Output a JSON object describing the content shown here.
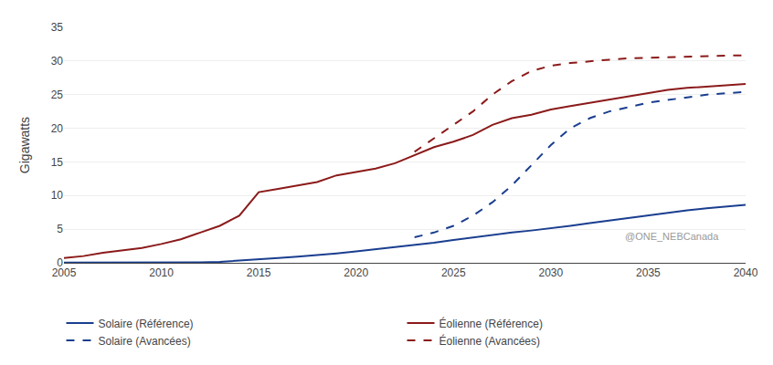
{
  "chart_data": {
    "type": "line",
    "ylabel": "Gigawatts",
    "annotations": [
      "@ONE_NEBCanada"
    ],
    "xlim": [
      2005,
      2040
    ],
    "ylim": [
      0,
      35
    ],
    "xticks": [
      2005,
      2010,
      2015,
      2020,
      2025,
      2030,
      2035,
      2040
    ],
    "yticks": [
      0,
      5,
      10,
      15,
      20,
      25,
      30,
      35
    ],
    "grid": "y",
    "legend": "bottom",
    "series": [
      {
        "name": "Solaire (Référence)",
        "color": "#1A3E8F",
        "line_style": "solid",
        "x": [
          2005,
          2006,
          2007,
          2008,
          2009,
          2010,
          2011,
          2012,
          2013,
          2014,
          2015,
          2016,
          2017,
          2018,
          2019,
          2020,
          2021,
          2022,
          2023,
          2024,
          2025,
          2026,
          2027,
          2028,
          2029,
          2030,
          2031,
          2032,
          2033,
          2034,
          2035,
          2036,
          2037,
          2038,
          2039,
          2040
        ],
        "values": [
          0.02,
          0.02,
          0.02,
          0.03,
          0.03,
          0.04,
          0.05,
          0.08,
          0.15,
          0.3,
          0.5,
          0.7,
          0.9,
          1.1,
          1.4,
          1.7,
          2.0,
          2.3,
          2.6,
          3.0,
          3.4,
          3.8,
          4.2,
          4.5,
          4.8,
          5.1,
          5.5,
          5.9,
          6.3,
          6.7,
          7.1,
          7.5,
          7.8,
          8.1,
          8.4,
          8.6
        ]
      },
      {
        "name": "Éolienne (Référence)",
        "color": "#8B1A1A",
        "line_style": "solid",
        "x": [
          2005,
          2006,
          2007,
          2008,
          2009,
          2010,
          2011,
          2012,
          2013,
          2014,
          2015,
          2016,
          2017,
          2018,
          2019,
          2020,
          2021,
          2022,
          2023,
          2024,
          2025,
          2026,
          2027,
          2028,
          2029,
          2030,
          2031,
          2032,
          2033,
          2034,
          2035,
          2036,
          2037,
          2038,
          2039,
          2040
        ],
        "values": [
          0.7,
          1.0,
          1.5,
          1.8,
          2.2,
          2.8,
          3.5,
          4.5,
          5.5,
          7.0,
          10.5,
          11.0,
          11.5,
          12.0,
          13.0,
          13.5,
          14.0,
          14.8,
          16.0,
          17.2,
          18.0,
          19.0,
          20.5,
          21.5,
          22.0,
          22.8,
          23.3,
          23.8,
          24.3,
          24.8,
          25.3,
          25.7,
          26.0,
          26.2,
          26.4,
          26.6
        ]
      },
      {
        "name": "Solaire (Avancées)",
        "color": "#1A3E8F",
        "line_style": "dashed",
        "x": [
          2023,
          2024,
          2025,
          2026,
          2027,
          2028,
          2029,
          2030,
          2031,
          2032,
          2033,
          2034,
          2035,
          2036,
          2037,
          2038,
          2039,
          2040
        ],
        "values": [
          3.8,
          4.5,
          5.5,
          7.0,
          9.0,
          11.5,
          14.5,
          17.5,
          20.0,
          21.5,
          22.5,
          23.2,
          23.8,
          24.2,
          24.6,
          25.0,
          25.2,
          25.4
        ]
      },
      {
        "name": "Éolienne (Avancées)",
        "color": "#8B1A1A",
        "line_style": "dashed",
        "x": [
          2023,
          2024,
          2025,
          2026,
          2027,
          2028,
          2029,
          2030,
          2031,
          2032,
          2033,
          2034,
          2035,
          2036,
          2037,
          2038,
          2039,
          2040
        ],
        "values": [
          16.5,
          18.5,
          20.5,
          22.5,
          25.0,
          27.0,
          28.5,
          29.3,
          29.7,
          30.0,
          30.2,
          30.4,
          30.5,
          30.6,
          30.7,
          30.75,
          30.8,
          30.85
        ]
      }
    ]
  }
}
